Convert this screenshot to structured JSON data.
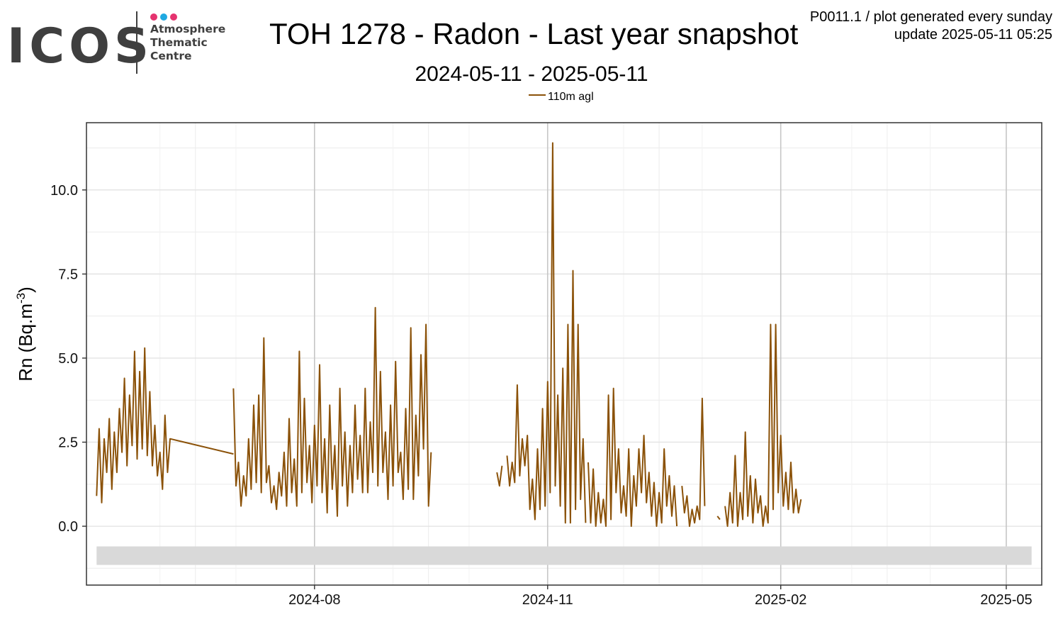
{
  "logo": {
    "wordmark": "ICOS",
    "lines": [
      "Atmosphere",
      "Thematic",
      "Centre"
    ],
    "dot_colors": [
      "#e5336f",
      "#1fa9e1",
      "#e5336f"
    ]
  },
  "header": {
    "title": "TOH 1278 - Radon - Last year snapshot",
    "subtitle": "2024-05-11 - 2025-05-11",
    "meta_line1": "P0011.1 / plot generated every sunday",
    "meta_line2": "update  2025-05-11 05:25"
  },
  "chart_data": {
    "type": "line",
    "ylabel": "Rn (Bq.m",
    "ylabel_exp": "-3",
    "ylabel_close": ")",
    "ylim": [
      -1.75,
      12.0
    ],
    "xlim": [
      "2024-05-03",
      "2025-05-15"
    ],
    "y_ticks": [
      0.0,
      2.5,
      5.0,
      7.5,
      10.0
    ],
    "y_tick_labels": [
      "0.0",
      "2.5",
      "5.0",
      "7.5",
      "10.0"
    ],
    "x_ticks": [
      "2024-08-01",
      "2024-11-01",
      "2025-02-01",
      "2025-05-01"
    ],
    "x_tick_labels": [
      "2024-08",
      "2024-11",
      "2025-02",
      "2025-05"
    ],
    "grid": true,
    "legend_position": "top-center",
    "flag_band": {
      "from": "2024-05-07",
      "to": "2025-05-11",
      "y_range": [
        -1.15,
        -0.6
      ],
      "color": "#d9d9d9"
    },
    "series": [
      {
        "name": "110m agl",
        "color": "#8b5209",
        "segments": [
          [
            [
              "2024-05-07",
              0.9
            ],
            [
              "2024-05-08",
              2.9
            ],
            [
              "2024-05-09",
              0.7
            ],
            [
              "2024-05-10",
              2.6
            ],
            [
              "2024-05-11",
              1.6
            ],
            [
              "2024-05-12",
              3.2
            ],
            [
              "2024-05-13",
              1.1
            ],
            [
              "2024-05-14",
              2.8
            ],
            [
              "2024-05-15",
              1.6
            ],
            [
              "2024-05-16",
              3.5
            ],
            [
              "2024-05-17",
              2.2
            ],
            [
              "2024-05-18",
              4.4
            ],
            [
              "2024-05-19",
              1.8
            ],
            [
              "2024-05-20",
              3.9
            ],
            [
              "2024-05-21",
              2.4
            ],
            [
              "2024-05-22",
              5.2
            ],
            [
              "2024-05-23",
              2.0
            ],
            [
              "2024-05-24",
              4.6
            ],
            [
              "2024-05-25",
              2.3
            ],
            [
              "2024-05-26",
              5.3
            ],
            [
              "2024-05-27",
              2.1
            ],
            [
              "2024-05-28",
              4.0
            ],
            [
              "2024-05-29",
              1.8
            ],
            [
              "2024-05-30",
              3.0
            ],
            [
              "2024-05-31",
              1.5
            ],
            [
              "2024-06-01",
              2.2
            ],
            [
              "2024-06-02",
              1.1
            ],
            [
              "2024-06-03",
              3.3
            ],
            [
              "2024-06-04",
              1.6
            ],
            [
              "2024-06-05",
              2.6
            ],
            [
              "2024-06-30",
              2.15
            ]
          ],
          [
            [
              "2024-06-30",
              4.1
            ],
            [
              "2024-07-01",
              1.2
            ],
            [
              "2024-07-02",
              1.9
            ],
            [
              "2024-07-03",
              0.6
            ],
            [
              "2024-07-04",
              1.5
            ],
            [
              "2024-07-05",
              0.9
            ],
            [
              "2024-07-06",
              2.6
            ],
            [
              "2024-07-07",
              1.1
            ],
            [
              "2024-07-08",
              3.6
            ],
            [
              "2024-07-09",
              1.3
            ],
            [
              "2024-07-10",
              3.9
            ],
            [
              "2024-07-11",
              1.0
            ],
            [
              "2024-07-12",
              5.6
            ],
            [
              "2024-07-13",
              1.3
            ],
            [
              "2024-07-14",
              1.8
            ],
            [
              "2024-07-15",
              0.7
            ],
            [
              "2024-07-16",
              1.2
            ],
            [
              "2024-07-17",
              0.5
            ],
            [
              "2024-07-18",
              1.6
            ],
            [
              "2024-07-19",
              0.9
            ],
            [
              "2024-07-20",
              2.2
            ],
            [
              "2024-07-21",
              0.6
            ],
            [
              "2024-07-22",
              3.2
            ],
            [
              "2024-07-23",
              1.0
            ],
            [
              "2024-07-24",
              2.0
            ],
            [
              "2024-07-25",
              0.6
            ],
            [
              "2024-07-26",
              5.2
            ],
            [
              "2024-07-27",
              1.0
            ],
            [
              "2024-07-28",
              3.8
            ],
            [
              "2024-07-29",
              1.3
            ],
            [
              "2024-07-30",
              2.4
            ],
            [
              "2024-07-31",
              0.7
            ],
            [
              "2024-08-01",
              3.0
            ],
            [
              "2024-08-02",
              1.2
            ],
            [
              "2024-08-03",
              4.8
            ],
            [
              "2024-08-04",
              1.0
            ],
            [
              "2024-08-05",
              2.6
            ],
            [
              "2024-08-06",
              0.4
            ],
            [
              "2024-08-07",
              3.6
            ],
            [
              "2024-08-08",
              1.1
            ],
            [
              "2024-08-09",
              2.4
            ],
            [
              "2024-08-10",
              0.3
            ],
            [
              "2024-08-11",
              4.1
            ],
            [
              "2024-08-12",
              1.2
            ],
            [
              "2024-08-13",
              2.8
            ],
            [
              "2024-08-14",
              0.6
            ],
            [
              "2024-08-15",
              2.4
            ],
            [
              "2024-08-16",
              1.0
            ],
            [
              "2024-08-17",
              3.6
            ],
            [
              "2024-08-18",
              1.4
            ],
            [
              "2024-08-19",
              2.7
            ],
            [
              "2024-08-20",
              1.0
            ],
            [
              "2024-08-21",
              4.1
            ],
            [
              "2024-08-22",
              1.0
            ],
            [
              "2024-08-23",
              3.1
            ],
            [
              "2024-08-24",
              1.6
            ],
            [
              "2024-08-25",
              6.5
            ],
            [
              "2024-08-26",
              1.2
            ],
            [
              "2024-08-27",
              4.6
            ],
            [
              "2024-08-28",
              1.6
            ],
            [
              "2024-08-29",
              2.8
            ],
            [
              "2024-08-30",
              0.8
            ],
            [
              "2024-08-31",
              3.6
            ],
            [
              "2024-09-01",
              1.2
            ],
            [
              "2024-09-02",
              4.9
            ],
            [
              "2024-09-03",
              1.6
            ],
            [
              "2024-09-04",
              2.2
            ],
            [
              "2024-09-05",
              0.8
            ],
            [
              "2024-09-06",
              3.5
            ],
            [
              "2024-09-07",
              1.1
            ],
            [
              "2024-09-08",
              5.9
            ],
            [
              "2024-09-09",
              0.8
            ],
            [
              "2024-09-10",
              3.3
            ],
            [
              "2024-09-11",
              1.5
            ],
            [
              "2024-09-12",
              5.1
            ],
            [
              "2024-09-13",
              2.3
            ],
            [
              "2024-09-14",
              6.0
            ],
            [
              "2024-09-15",
              0.6
            ],
            [
              "2024-09-16",
              2.2
            ]
          ],
          [
            [
              "2024-10-12",
              1.6
            ],
            [
              "2024-10-13",
              1.2
            ],
            [
              "2024-10-14",
              1.8
            ]
          ],
          [
            [
              "2024-10-16",
              2.1
            ],
            [
              "2024-10-17",
              1.2
            ],
            [
              "2024-10-18",
              1.9
            ],
            [
              "2024-10-19",
              1.3
            ],
            [
              "2024-10-20",
              4.2
            ],
            [
              "2024-10-21",
              1.5
            ],
            [
              "2024-10-22",
              2.6
            ],
            [
              "2024-10-23",
              1.8
            ],
            [
              "2024-10-24",
              2.7
            ],
            [
              "2024-10-25",
              0.5
            ],
            [
              "2024-10-26",
              1.4
            ],
            [
              "2024-10-27",
              0.2
            ],
            [
              "2024-10-28",
              2.3
            ],
            [
              "2024-10-29",
              0.5
            ],
            [
              "2024-10-30",
              3.5
            ],
            [
              "2024-10-31",
              0.6
            ],
            [
              "2024-11-01",
              4.3
            ],
            [
              "2024-11-02",
              1.0
            ],
            [
              "2024-11-03",
              11.4
            ],
            [
              "2024-11-04",
              1.2
            ],
            [
              "2024-11-05",
              3.9
            ],
            [
              "2024-11-06",
              0.6
            ],
            [
              "2024-11-07",
              4.7
            ],
            [
              "2024-11-08",
              0.1
            ],
            [
              "2024-11-09",
              6.0
            ],
            [
              "2024-11-10",
              0.1
            ],
            [
              "2024-11-11",
              7.6
            ],
            [
              "2024-11-12",
              0.5
            ],
            [
              "2024-11-13",
              6.0
            ],
            [
              "2024-11-14",
              0.8
            ],
            [
              "2024-11-15",
              2.6
            ],
            [
              "2024-11-16",
              0.1
            ]
          ],
          [
            [
              "2024-11-17",
              1.9
            ],
            [
              "2024-11-18",
              0.1
            ],
            [
              "2024-11-19",
              1.7
            ],
            [
              "2024-11-20",
              0.0
            ],
            [
              "2024-11-21",
              1.0
            ],
            [
              "2024-11-22",
              0.1
            ],
            [
              "2024-11-23",
              0.8
            ],
            [
              "2024-11-24",
              0.0
            ],
            [
              "2024-11-25",
              3.9
            ],
            [
              "2024-11-26",
              0.2
            ],
            [
              "2024-11-27",
              4.1
            ],
            [
              "2024-11-28",
              1.0
            ],
            [
              "2024-11-29",
              2.3
            ],
            [
              "2024-11-30",
              0.4
            ],
            [
              "2024-12-01",
              1.2
            ],
            [
              "2024-12-02",
              0.3
            ],
            [
              "2024-12-03",
              2.3
            ],
            [
              "2024-12-04",
              0.0
            ],
            [
              "2024-12-05",
              1.5
            ],
            [
              "2024-12-06",
              0.6
            ],
            [
              "2024-12-07",
              2.3
            ],
            [
              "2024-12-08",
              1.0
            ],
            [
              "2024-12-09",
              2.7
            ],
            [
              "2024-12-10",
              0.7
            ],
            [
              "2024-12-11",
              1.6
            ],
            [
              "2024-12-12",
              0.3
            ],
            [
              "2024-12-13",
              1.3
            ],
            [
              "2024-12-14",
              0.0
            ],
            [
              "2024-12-15",
              1.0
            ],
            [
              "2024-12-16",
              0.1
            ],
            [
              "2024-12-17",
              2.3
            ],
            [
              "2024-12-18",
              0.6
            ],
            [
              "2024-12-19",
              1.5
            ],
            [
              "2024-12-20",
              0.3
            ],
            [
              "2024-12-21",
              1.2
            ],
            [
              "2024-12-22",
              0.0
            ]
          ],
          [
            [
              "2024-12-24",
              1.2
            ],
            [
              "2024-12-25",
              0.4
            ],
            [
              "2024-12-26",
              0.9
            ],
            [
              "2024-12-27",
              0.0
            ],
            [
              "2024-12-28",
              0.5
            ],
            [
              "2024-12-29",
              0.1
            ],
            [
              "2024-12-30",
              0.6
            ],
            [
              "2024-12-31",
              0.2
            ],
            [
              "2025-01-01",
              3.8
            ],
            [
              "2025-01-02",
              0.6
            ]
          ],
          [
            [
              "2025-01-07",
              0.3
            ],
            [
              "2025-01-08",
              0.2
            ]
          ],
          [
            [
              "2025-01-10",
              0.6
            ],
            [
              "2025-01-11",
              0.0
            ],
            [
              "2025-01-12",
              1.0
            ],
            [
              "2025-01-13",
              0.1
            ],
            [
              "2025-01-14",
              2.1
            ],
            [
              "2025-01-15",
              0.0
            ],
            [
              "2025-01-16",
              1.0
            ],
            [
              "2025-01-17",
              0.2
            ],
            [
              "2025-01-18",
              2.8
            ],
            [
              "2025-01-19",
              0.3
            ],
            [
              "2025-01-20",
              1.5
            ],
            [
              "2025-01-21",
              0.1
            ],
            [
              "2025-01-22",
              1.4
            ],
            [
              "2025-01-23",
              0.4
            ],
            [
              "2025-01-24",
              0.9
            ],
            [
              "2025-01-25",
              0.0
            ],
            [
              "2025-01-26",
              0.6
            ],
            [
              "2025-01-27",
              0.1
            ],
            [
              "2025-01-28",
              6.0
            ],
            [
              "2025-01-29",
              0.5
            ],
            [
              "2025-01-30",
              6.0
            ],
            [
              "2025-01-31",
              1.0
            ],
            [
              "2025-02-01",
              2.7
            ],
            [
              "2025-02-02",
              0.6
            ],
            [
              "2025-02-03",
              1.6
            ],
            [
              "2025-02-04",
              0.5
            ],
            [
              "2025-02-05",
              1.9
            ],
            [
              "2025-02-06",
              0.4
            ],
            [
              "2025-02-07",
              1.1
            ],
            [
              "2025-02-08",
              0.4
            ],
            [
              "2025-02-09",
              0.8
            ]
          ]
        ]
      }
    ]
  }
}
